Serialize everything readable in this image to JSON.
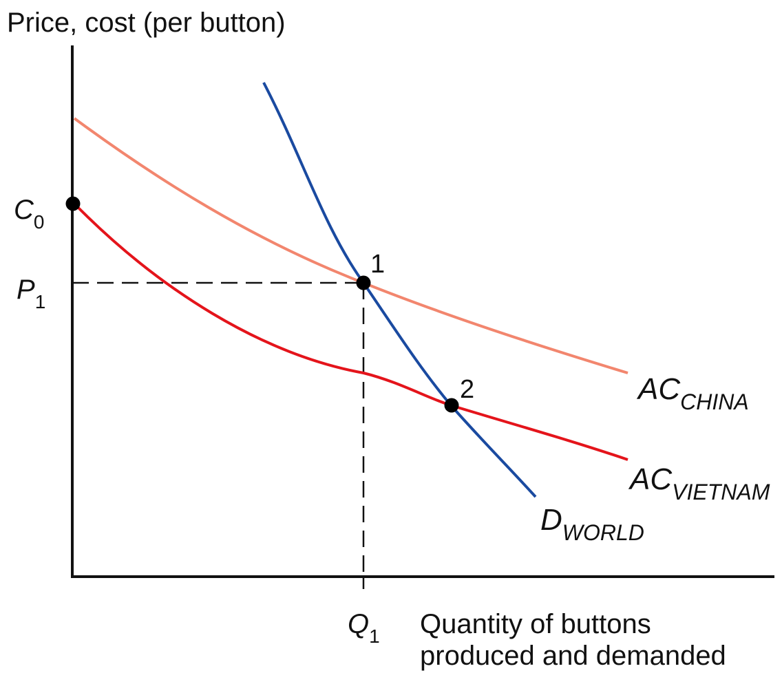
{
  "y_axis_label": "Price, cost (per button)",
  "x_axis_label": [
    "Quantity of buttons",
    "produced and demanded"
  ],
  "ticks": {
    "c0": {
      "main": "C",
      "sub": "0"
    },
    "p1": {
      "main": "P",
      "sub": "1"
    },
    "q1": {
      "main": "Q",
      "sub": "1"
    }
  },
  "curve_labels": {
    "ac_china": {
      "main": "AC",
      "sub": "CHINA"
    },
    "ac_vietnam": {
      "main": "AC",
      "sub": "VIETNAM"
    },
    "d_world": {
      "main": "D",
      "sub": "WORLD"
    }
  },
  "point_labels": {
    "point1": "1",
    "point2": "2"
  },
  "colors": {
    "axis": "#111111",
    "ac_china": "#f2866e",
    "ac_vietnam": "#e4141b",
    "d_world": "#1a4aa0",
    "guide": "#111111",
    "point": "#000000"
  }
}
